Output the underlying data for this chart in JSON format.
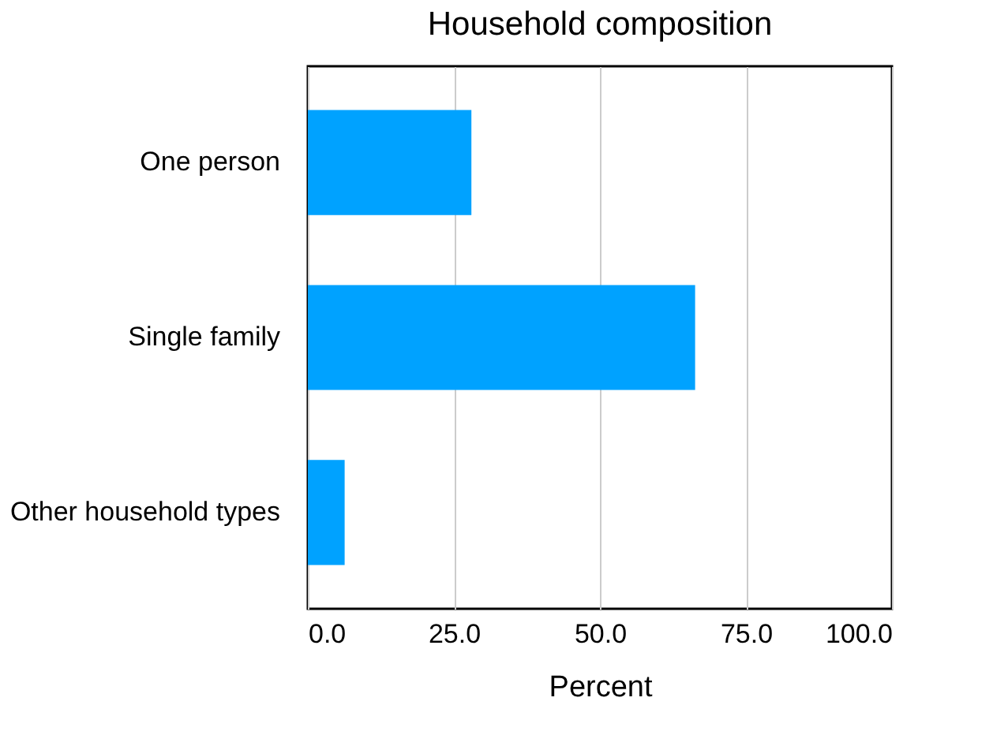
{
  "chart_data": {
    "type": "bar",
    "orientation": "horizontal",
    "title": "Household composition",
    "xlabel": "Percent",
    "categories": [
      "One person",
      "Single family",
      "Other household types"
    ],
    "values": [
      28,
      66.3,
      6.3
    ],
    "color": "#00a2ff",
    "xlim": [
      0,
      100
    ],
    "xticks": [
      {
        "value": 0,
        "label": "0.0"
      },
      {
        "value": 25,
        "label": "25.0"
      },
      {
        "value": 50,
        "label": "50.0"
      },
      {
        "value": 75,
        "label": "75.0"
      },
      {
        "value": 100,
        "label": "100.0"
      }
    ],
    "grid": "x"
  }
}
